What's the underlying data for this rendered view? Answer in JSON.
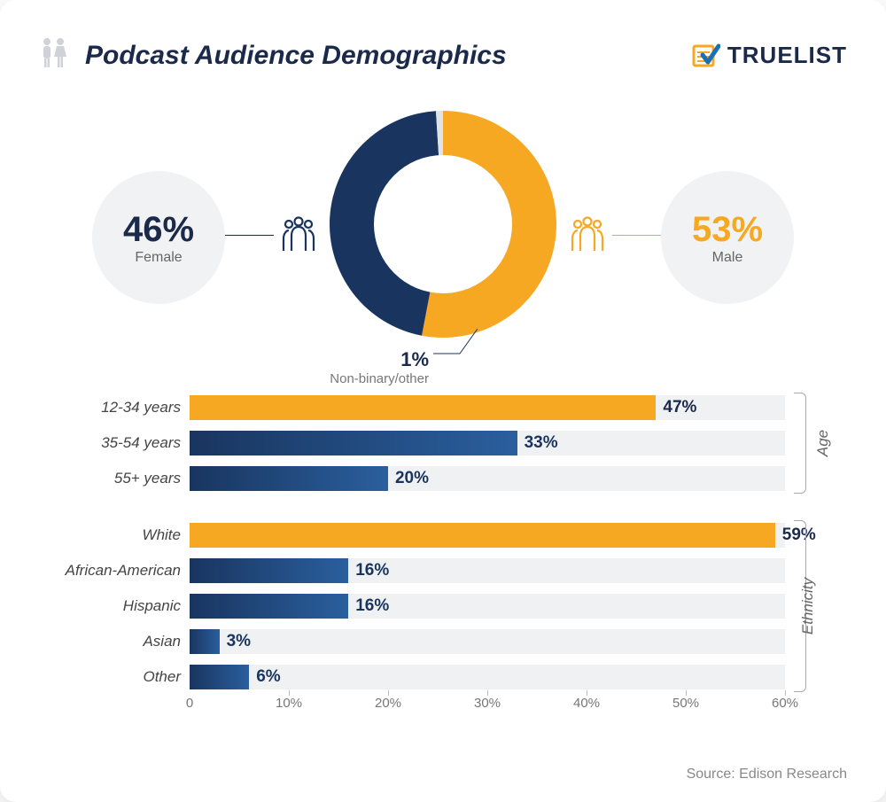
{
  "title": "Podcast Audience Demographics",
  "logo": {
    "text": "TRUELIST",
    "check_color": "#1b6fb5",
    "box_color": "#f7a823",
    "text_color": "#1b2a4a"
  },
  "colors": {
    "navy": "#19355f",
    "navy_light": "#2a5f9e",
    "orange": "#f7a823",
    "nb_slice": "#dfe3e8",
    "track": "#f0f1f3",
    "side_circle": "#f1f2f4",
    "text_dark": "#1b2a4a"
  },
  "donut": {
    "type": "donut",
    "size": 260,
    "inner_radius": 78,
    "slices": [
      {
        "key": "male",
        "label": "Male",
        "value": 53,
        "pct": "53%",
        "color": "#f7a823"
      },
      {
        "key": "female",
        "label": "Female",
        "value": 46,
        "pct": "46%",
        "color": "#19355f"
      },
      {
        "key": "nb",
        "label": "Non-binary/other",
        "value": 1,
        "pct": "1%",
        "color": "#dfe3e8"
      }
    ]
  },
  "bars": {
    "xlim": [
      0,
      60
    ],
    "xtick_step": 10,
    "xticks": [
      "0",
      "10%",
      "20%",
      "30%",
      "40%",
      "50%",
      "60%"
    ],
    "groups": [
      {
        "name": "Age",
        "rows": [
          {
            "label": "12-34 years",
            "value": 47,
            "pct": "47%",
            "color": "#f7a823",
            "val_color": "#1b2a4a"
          },
          {
            "label": "35-54 years",
            "value": 33,
            "pct": "33%",
            "color": "grad-navy",
            "val_color": "#19355f"
          },
          {
            "label": "55+ years",
            "value": 20,
            "pct": "20%",
            "color": "grad-navy",
            "val_color": "#19355f"
          }
        ]
      },
      {
        "name": "Ethnicity",
        "rows": [
          {
            "label": "White",
            "value": 59,
            "pct": "59%",
            "color": "#f7a823",
            "val_color": "#1b2a4a"
          },
          {
            "label": "African-American",
            "value": 16,
            "pct": "16%",
            "color": "grad-navy",
            "val_color": "#19355f"
          },
          {
            "label": "Hispanic",
            "value": 16,
            "pct": "16%",
            "color": "grad-navy",
            "val_color": "#19355f"
          },
          {
            "label": "Asian",
            "value": 3,
            "pct": "3%",
            "color": "grad-navy",
            "val_color": "#19355f"
          },
          {
            "label": "Other",
            "value": 6,
            "pct": "6%",
            "color": "grad-navy",
            "val_color": "#19355f"
          }
        ]
      }
    ]
  },
  "source": "Source: Edison Research"
}
